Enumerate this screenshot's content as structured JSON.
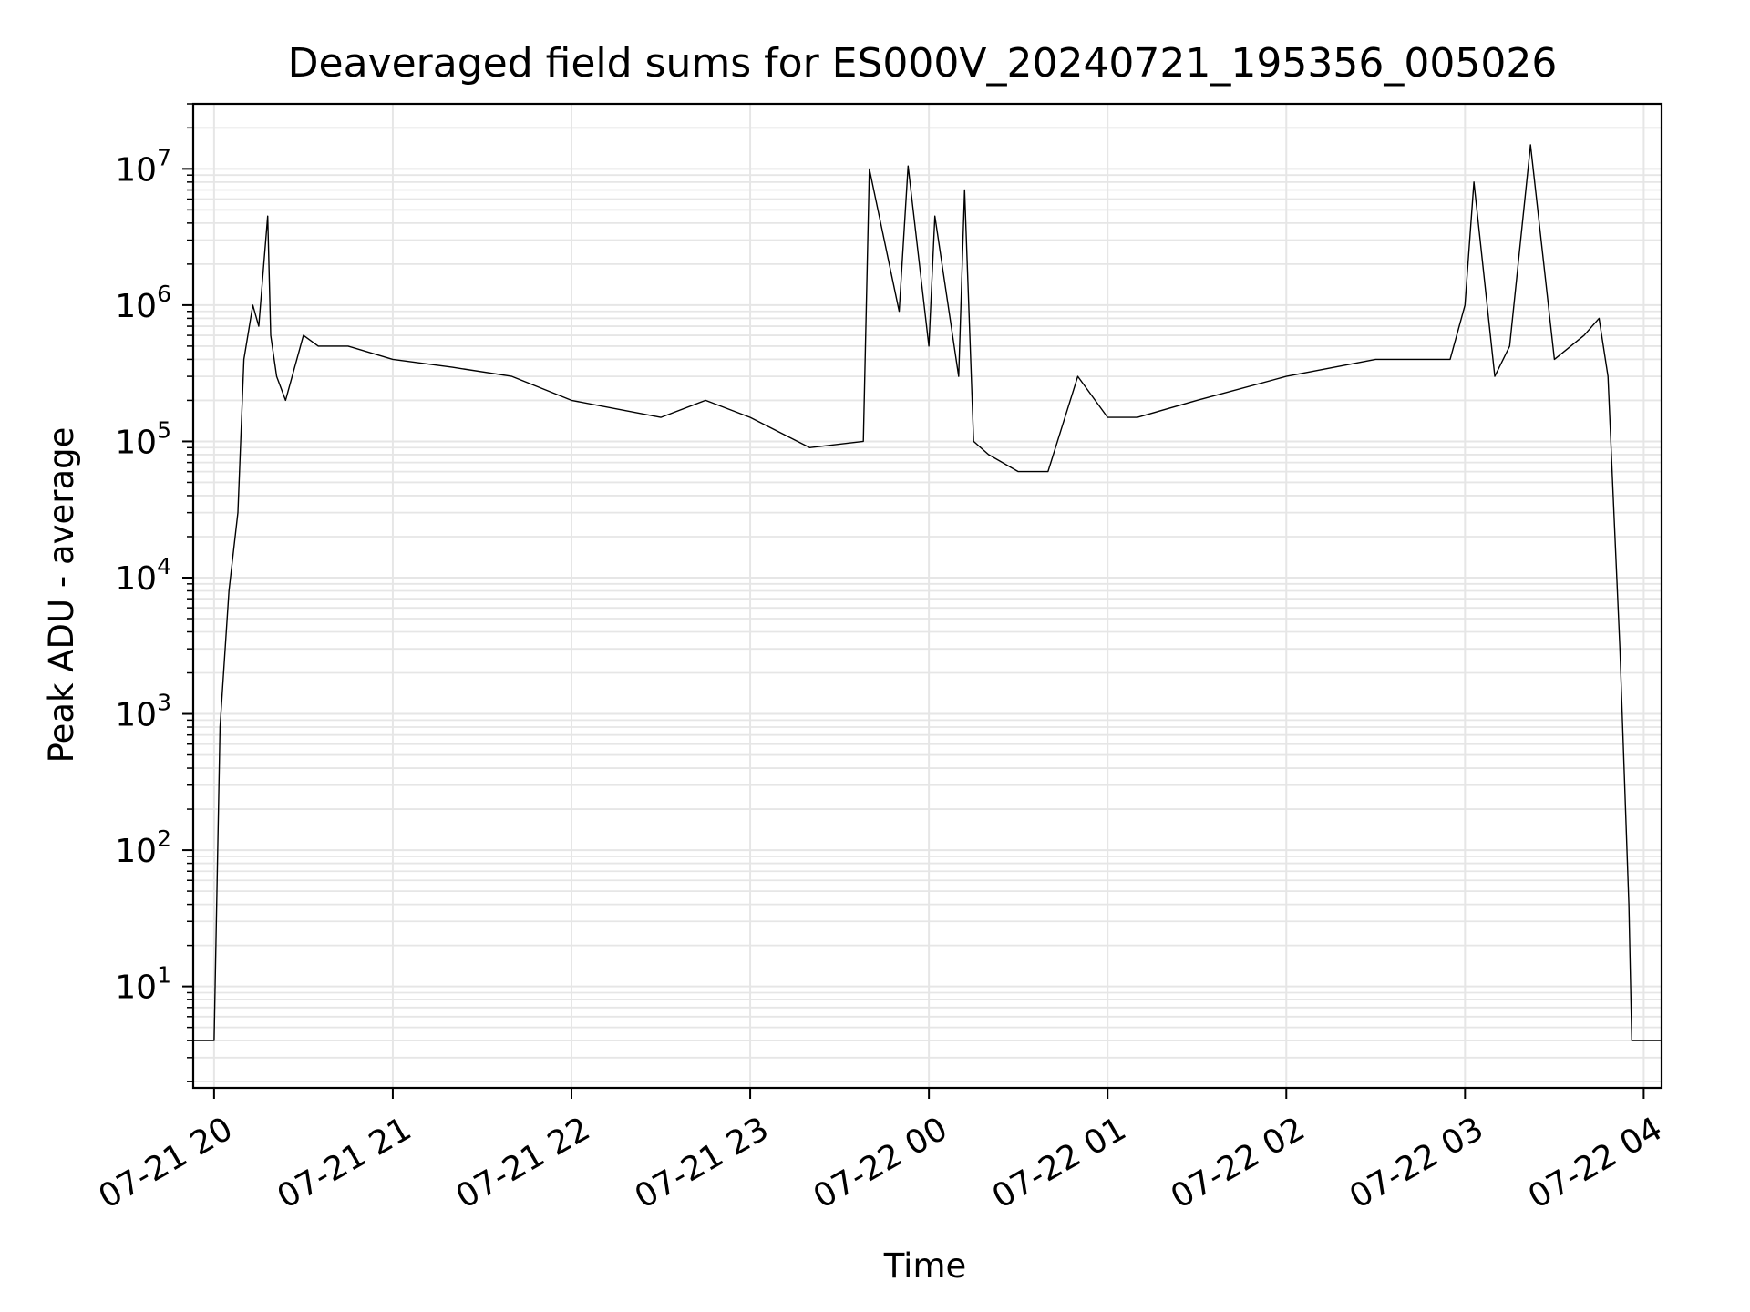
{
  "chart_data": {
    "type": "line",
    "title": "Deaveraged field sums for ES000V_20240721_195356_005026",
    "xlabel": "Time",
    "ylabel": "Peak ADU - average",
    "yscale": "log",
    "grid": true,
    "line_color": "#000000",
    "grid_color": "#e6e6e6",
    "xlim": [
      "2024-07-21 19:53",
      "2024-07-22 04:06"
    ],
    "ylim": [
      1.8,
      30000000
    ],
    "x_ticks": [
      "2024-07-21 20:00",
      "2024-07-21 21:00",
      "2024-07-21 22:00",
      "2024-07-21 23:00",
      "2024-07-22 00:00",
      "2024-07-22 01:00",
      "2024-07-22 02:00",
      "2024-07-22 03:00",
      "2024-07-22 04:00"
    ],
    "x_tick_labels": [
      "07-21 20",
      "07-21 21",
      "07-21 22",
      "07-21 23",
      "07-22 00",
      "07-22 01",
      "07-22 02",
      "07-22 03",
      "07-22 04"
    ],
    "y_ticks": [
      10,
      100,
      1000,
      10000,
      100000,
      1000000,
      10000000
    ],
    "y_tick_labels": [
      {
        "base": "10",
        "exp": "1"
      },
      {
        "base": "10",
        "exp": "2"
      },
      {
        "base": "10",
        "exp": "3"
      },
      {
        "base": "10",
        "exp": "4"
      },
      {
        "base": "10",
        "exp": "5"
      },
      {
        "base": "10",
        "exp": "6"
      },
      {
        "base": "10",
        "exp": "7"
      }
    ],
    "series": [
      {
        "x": [
          "2024-07-21 19:53",
          "2024-07-21 20:00",
          "2024-07-21 20:02",
          "2024-07-21 20:05",
          "2024-07-21 20:08",
          "2024-07-21 20:10",
          "2024-07-21 20:13",
          "2024-07-21 20:15",
          "2024-07-21 20:18",
          "2024-07-21 20:19",
          "2024-07-21 20:21",
          "2024-07-21 20:24",
          "2024-07-21 20:30",
          "2024-07-21 20:35",
          "2024-07-21 20:45",
          "2024-07-21 21:00",
          "2024-07-21 21:20",
          "2024-07-21 21:40",
          "2024-07-21 22:00",
          "2024-07-21 22:30",
          "2024-07-21 22:45",
          "2024-07-21 23:00",
          "2024-07-21 23:20",
          "2024-07-21 23:38",
          "2024-07-21 23:40",
          "2024-07-21 23:50",
          "2024-07-21 23:53",
          "2024-07-22 00:00",
          "2024-07-22 00:02",
          "2024-07-22 00:10",
          "2024-07-22 00:12",
          "2024-07-22 00:15",
          "2024-07-22 00:20",
          "2024-07-22 00:30",
          "2024-07-22 00:40",
          "2024-07-22 00:50",
          "2024-07-22 01:00",
          "2024-07-22 01:10",
          "2024-07-22 01:30",
          "2024-07-22 02:00",
          "2024-07-22 02:30",
          "2024-07-22 02:55",
          "2024-07-22 03:00",
          "2024-07-22 03:03",
          "2024-07-22 03:10",
          "2024-07-22 03:15",
          "2024-07-22 03:22",
          "2024-07-22 03:30",
          "2024-07-22 03:40",
          "2024-07-22 03:45",
          "2024-07-22 03:48",
          "2024-07-22 03:50",
          "2024-07-22 03:52",
          "2024-07-22 03:55",
          "2024-07-22 03:56",
          "2024-07-22 03:58",
          "2024-07-22 04:06"
        ],
        "y": [
          4,
          4,
          800,
          8000,
          30000,
          400000,
          1000000,
          700000,
          4500000,
          600000,
          300000,
          200000,
          600000,
          500000,
          500000,
          400000,
          350000,
          300000,
          200000,
          150000,
          200000,
          150000,
          90000,
          100000,
          10000000,
          900000,
          10500000,
          500000,
          4500000,
          300000,
          7000000,
          100000,
          80000,
          60000,
          60000,
          300000,
          150000,
          150000,
          200000,
          300000,
          400000,
          400000,
          1000000,
          8000000,
          300000,
          500000,
          15000000,
          400000,
          600000,
          800000,
          300000,
          30000,
          3000,
          40,
          4,
          4,
          4
        ]
      }
    ]
  }
}
